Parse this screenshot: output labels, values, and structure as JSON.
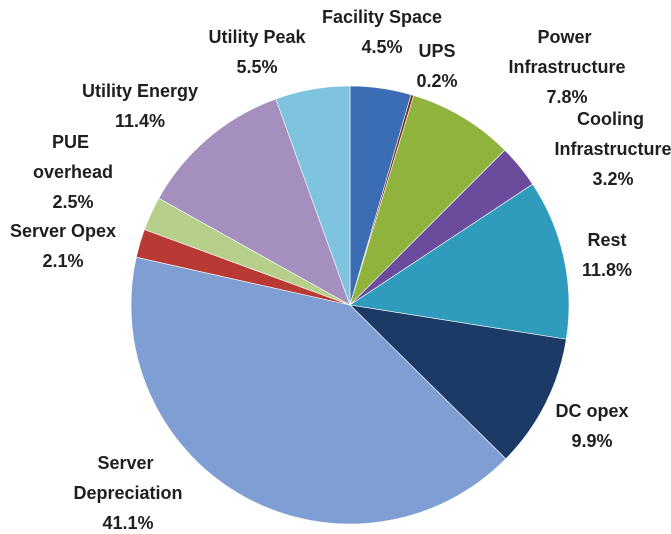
{
  "chart_data": {
    "type": "pie",
    "categories": [
      "Facility Space",
      "UPS",
      "Power Infrastructure",
      "Cooling Infrastructure",
      "Rest",
      "DC opex",
      "Server Depreciation",
      "Server Opex",
      "PUE overhead",
      "Utility Energy",
      "Utility Peak"
    ],
    "values": [
      4.5,
      0.2,
      7.8,
      3.2,
      11.8,
      9.9,
      41.1,
      2.1,
      2.5,
      11.4,
      5.5
    ],
    "value_labels": [
      "4.5%",
      "0.2%",
      "7.8%",
      "3.2%",
      "11.8%",
      "9.9%",
      "41.1%",
      "2.1%",
      "2.5%",
      "11.4%",
      "5.5%"
    ],
    "colors": [
      "#3b6db5",
      "#7a2b22",
      "#8fb33c",
      "#6b4b9b",
      "#2f9cbe",
      "#1b3a66",
      "#7f9fd4",
      "#b93a35",
      "#b6d08b",
      "#a58fbe",
      "#7fc4de"
    ]
  }
}
